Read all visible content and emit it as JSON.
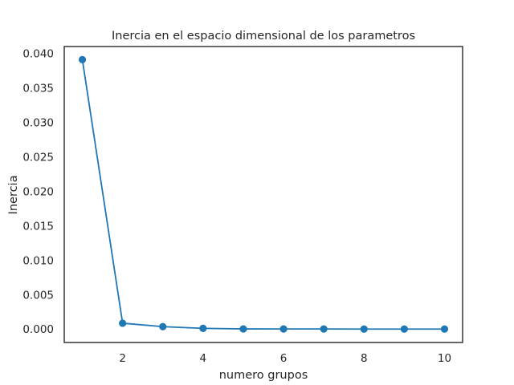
{
  "chart_data": {
    "type": "line",
    "title": "Inercia en el espacio dimensional de los parametros",
    "xlabel": "numero grupos",
    "ylabel": "Inercia",
    "x": [
      1,
      2,
      3,
      4,
      5,
      6,
      7,
      8,
      9,
      10
    ],
    "series": [
      {
        "values": [
          0.0391,
          0.00085,
          0.00035,
          0.0001,
          2e-05,
          1e-05,
          1e-05,
          0.0,
          0.0,
          0.0
        ],
        "color": "#1f77b4",
        "marker": "circle"
      }
    ],
    "xlim": [
      0.55,
      10.45
    ],
    "ylim": [
      -0.00195,
      0.041
    ],
    "xticks": [
      2,
      4,
      6,
      8,
      10
    ],
    "xtick_labels": [
      "2",
      "4",
      "6",
      "8",
      "10"
    ],
    "yticks": [
      0.0,
      0.005,
      0.01,
      0.015,
      0.02,
      0.025,
      0.03,
      0.035,
      0.04
    ],
    "ytick_labels": [
      "0.000",
      "0.005",
      "0.010",
      "0.015",
      "0.020",
      "0.025",
      "0.030",
      "0.035",
      "0.040"
    ],
    "grid": false,
    "legend": "none",
    "frame_color": "#262626"
  }
}
